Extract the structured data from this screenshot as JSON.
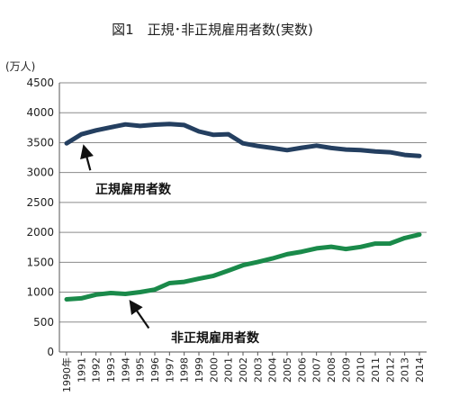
{
  "chart_data": {
    "type": "line",
    "title": "図1　正規･非正規雇用者数(実数)",
    "ylabel": "(万人)",
    "xlabel": "",
    "ylim": [
      0,
      4500
    ],
    "yticks": [
      0,
      500,
      1000,
      1500,
      2000,
      2500,
      3000,
      3500,
      4000,
      4500
    ],
    "grid": true,
    "legend": "none",
    "x": [
      "1990年",
      "1991",
      "1992",
      "1993",
      "1994",
      "1995",
      "1996",
      "1997",
      "1998",
      "1999",
      "2000",
      "2001",
      "2002",
      "2003",
      "2004",
      "2005",
      "2006",
      "2007",
      "2008",
      "2009",
      "2010",
      "2011",
      "2012",
      "2013",
      "2014"
    ],
    "series": [
      {
        "name": "正規雇用者数",
        "color": "#243f60",
        "values": [
          3488,
          3639,
          3705,
          3756,
          3805,
          3779,
          3800,
          3812,
          3794,
          3688,
          3630,
          3640,
          3489,
          3444,
          3410,
          3374,
          3415,
          3449,
          3410,
          3385,
          3374,
          3352,
          3340,
          3294,
          3278
        ]
      },
      {
        "name": "非正規雇用者数",
        "color": "#1a8a4a",
        "values": [
          881,
          897,
          958,
          986,
          971,
          1001,
          1043,
          1152,
          1173,
          1225,
          1273,
          1360,
          1451,
          1504,
          1564,
          1634,
          1677,
          1732,
          1760,
          1721,
          1756,
          1812,
          1813,
          1906,
          1962
        ]
      }
    ],
    "annotations": [
      {
        "text": "正規雇用者数",
        "series": 0,
        "point": 1
      },
      {
        "text": "非正規雇用者数",
        "series": 1,
        "point": 4
      }
    ]
  }
}
